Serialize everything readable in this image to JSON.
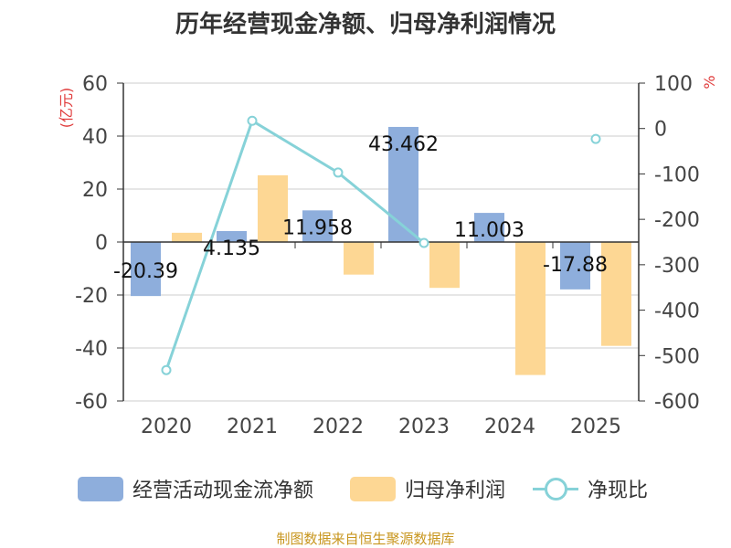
{
  "chart_data": {
    "type": "bar+line",
    "title": "历年经营现金净额、归母净利润情况",
    "categories": [
      "2020",
      "2021",
      "2022",
      "2023",
      "2024",
      "2025"
    ],
    "left_axis": {
      "label": "(亿元)",
      "ylim": [
        -60,
        60
      ],
      "ticks": [
        -60,
        -40,
        -20,
        0,
        20,
        40,
        60
      ]
    },
    "right_axis": {
      "label": "%",
      "ylim": [
        -600,
        100
      ],
      "ticks": [
        -600,
        -500,
        -400,
        -300,
        -200,
        -100,
        0,
        100
      ]
    },
    "series": [
      {
        "name": "经营活动现金流净额",
        "type": "bar",
        "axis": "left",
        "color": "#8eaedc",
        "values": [
          -20.39,
          4.135,
          11.958,
          43.462,
          11.003,
          -17.88
        ],
        "labels": [
          "-20.39",
          "4.135",
          "11.958",
          "43.462",
          "11.003",
          "-17.88"
        ]
      },
      {
        "name": "归母净利润",
        "type": "bar",
        "axis": "left",
        "color": "#fdd794",
        "values": [
          3.5,
          25.2,
          -12.3,
          -17.3,
          -50.2,
          -39.2
        ]
      },
      {
        "name": "净现比",
        "type": "line",
        "axis": "right",
        "color": "#86d2d8",
        "values": [
          -532,
          17,
          -97,
          -252,
          null,
          -23
        ]
      }
    ],
    "grid": true,
    "legend": "bottom",
    "source": "制图数据来自恒生聚源数据库"
  }
}
